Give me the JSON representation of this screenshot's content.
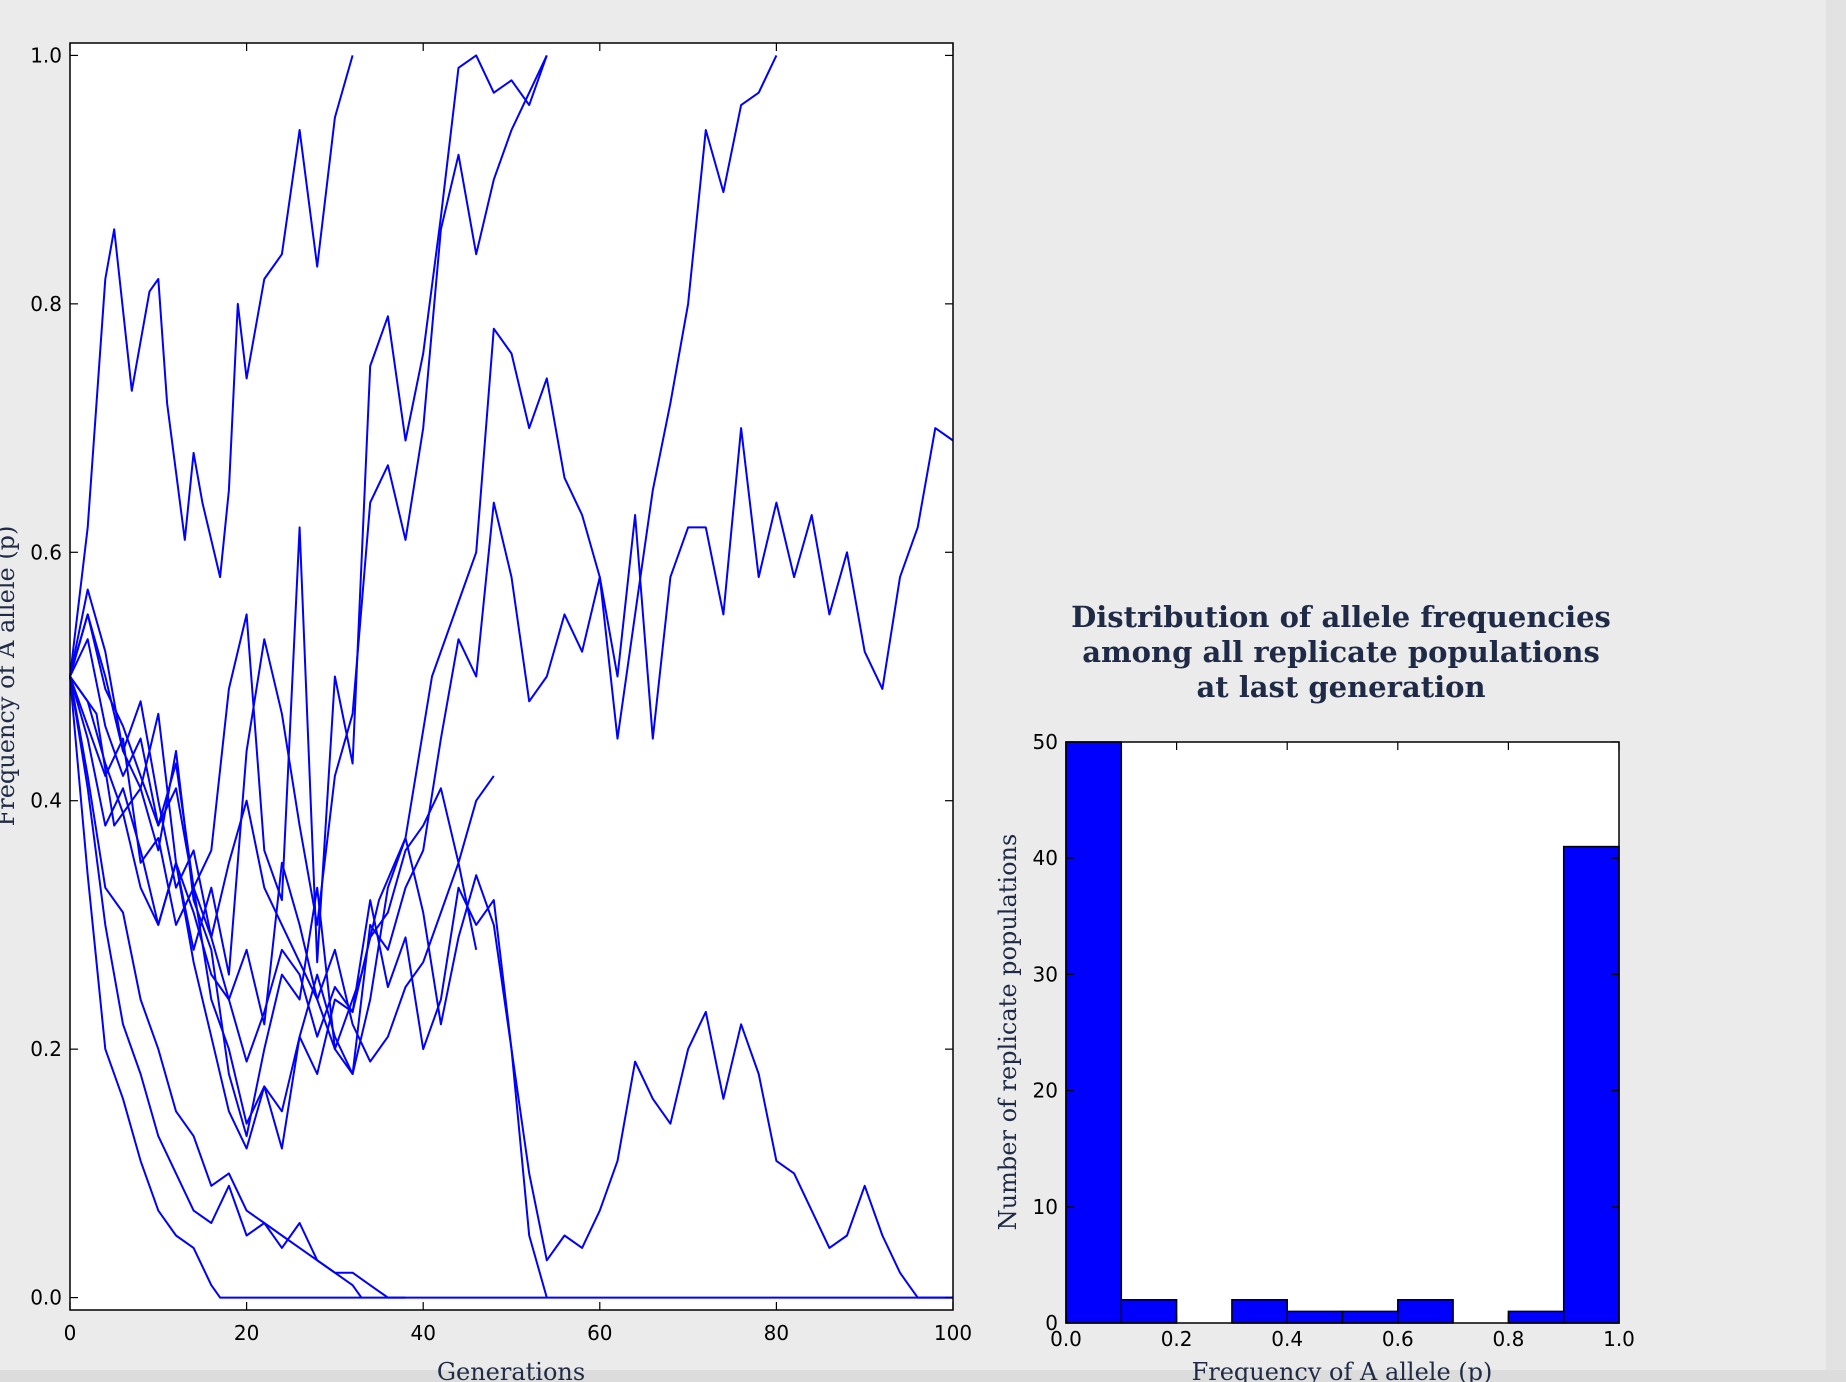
{
  "chart_data": [
    {
      "type": "line",
      "title": "",
      "xlabel": "Generations",
      "ylabel": "Frequency of A allele (p)",
      "xlim": [
        0,
        100
      ],
      "ylim": [
        0,
        1
      ],
      "x_ticks": [
        "0",
        "20",
        "40",
        "60",
        "80",
        "100"
      ],
      "y_ticks": [
        "0.0",
        "0.2",
        "0.4",
        "0.6",
        "0.8",
        "1.0"
      ],
      "line_color": "#0000ff",
      "grid": false,
      "series": [
        {
          "x": [
            0,
            2,
            4,
            5,
            7,
            9,
            10,
            11,
            13,
            14,
            15,
            17,
            18,
            19,
            20,
            22,
            24,
            26,
            28,
            30,
            32
          ],
          "y": [
            0.5,
            0.62,
            0.82,
            0.86,
            0.73,
            0.81,
            0.82,
            0.72,
            0.61,
            0.68,
            0.64,
            0.58,
            0.65,
            0.8,
            0.74,
            0.82,
            0.84,
            0.94,
            0.83,
            0.95,
            1.0
          ]
        },
        {
          "x": [
            0,
            2,
            4,
            6,
            8,
            10,
            12,
            14,
            16,
            18,
            20,
            22,
            24,
            26,
            28,
            30,
            32,
            34,
            36,
            38,
            40,
            42,
            44,
            46,
            48,
            50,
            52,
            54
          ],
          "y": [
            0.5,
            0.53,
            0.46,
            0.42,
            0.45,
            0.38,
            0.43,
            0.33,
            0.36,
            0.49,
            0.55,
            0.36,
            0.32,
            0.62,
            0.27,
            0.5,
            0.43,
            0.75,
            0.79,
            0.69,
            0.76,
            0.87,
            0.99,
            1.0,
            0.97,
            0.98,
            0.96,
            1.0
          ]
        },
        {
          "x": [
            0,
            2,
            4,
            6,
            8,
            10,
            12,
            14,
            16,
            18,
            20,
            22,
            24,
            26,
            28,
            30,
            32,
            34,
            36,
            38,
            40,
            42,
            44,
            46,
            48,
            50,
            52,
            54
          ],
          "y": [
            0.5,
            0.57,
            0.52,
            0.44,
            0.41,
            0.47,
            0.35,
            0.28,
            0.33,
            0.26,
            0.44,
            0.53,
            0.47,
            0.38,
            0.3,
            0.42,
            0.47,
            0.64,
            0.67,
            0.61,
            0.7,
            0.86,
            0.92,
            0.84,
            0.9,
            0.94,
            0.97,
            1.0
          ]
        },
        {
          "x": [
            0,
            3,
            5,
            8,
            10,
            12,
            14,
            16,
            18,
            20,
            22,
            24,
            26,
            28,
            30,
            33,
            35,
            38,
            41,
            44,
            46,
            48,
            50,
            52,
            54,
            56,
            58,
            60,
            62,
            64,
            66,
            68,
            70,
            72,
            74,
            76,
            78,
            80
          ],
          "y": [
            0.5,
            0.47,
            0.38,
            0.41,
            0.36,
            0.44,
            0.32,
            0.28,
            0.18,
            0.13,
            0.2,
            0.26,
            0.24,
            0.33,
            0.2,
            0.26,
            0.32,
            0.37,
            0.5,
            0.56,
            0.6,
            0.78,
            0.76,
            0.7,
            0.74,
            0.66,
            0.63,
            0.58,
            0.45,
            0.55,
            0.65,
            0.72,
            0.8,
            0.94,
            0.89,
            0.96,
            0.97,
            1.0
          ]
        },
        {
          "x": [
            0,
            2,
            4,
            6,
            8,
            10,
            12,
            14,
            16,
            18,
            20,
            22,
            24,
            26,
            28,
            30,
            32,
            34,
            36,
            38,
            40,
            42,
            44,
            46,
            48,
            50,
            52,
            54,
            56,
            58,
            60,
            62,
            64,
            66,
            68,
            70,
            72,
            74,
            76,
            78,
            80,
            82,
            84,
            86,
            88,
            90,
            92,
            94,
            96,
            98,
            100
          ],
          "y": [
            0.5,
            0.55,
            0.5,
            0.44,
            0.48,
            0.4,
            0.33,
            0.36,
            0.29,
            0.24,
            0.28,
            0.22,
            0.35,
            0.3,
            0.24,
            0.2,
            0.18,
            0.3,
            0.28,
            0.33,
            0.36,
            0.45,
            0.53,
            0.5,
            0.64,
            0.58,
            0.48,
            0.5,
            0.55,
            0.52,
            0.58,
            0.5,
            0.63,
            0.45,
            0.58,
            0.62,
            0.62,
            0.55,
            0.7,
            0.58,
            0.64,
            0.58,
            0.63,
            0.55,
            0.6,
            0.52,
            0.49,
            0.58,
            0.62,
            0.7,
            0.69
          ]
        },
        {
          "x": [
            0,
            2,
            4,
            6,
            8,
            10,
            12,
            14,
            16,
            18,
            20,
            22,
            24,
            26,
            28,
            30,
            32,
            34,
            36,
            38,
            40,
            42,
            44,
            46,
            48,
            50,
            52,
            54,
            56,
            58,
            60,
            62,
            64,
            66,
            68,
            70,
            72,
            74,
            76,
            78,
            80,
            82,
            84,
            86,
            88,
            90,
            92,
            94,
            95,
            96,
            100
          ],
          "y": [
            0.5,
            0.46,
            0.42,
            0.45,
            0.35,
            0.37,
            0.3,
            0.33,
            0.24,
            0.2,
            0.14,
            0.17,
            0.12,
            0.21,
            0.18,
            0.24,
            0.23,
            0.32,
            0.25,
            0.29,
            0.2,
            0.24,
            0.33,
            0.3,
            0.32,
            0.2,
            0.1,
            0.03,
            0.05,
            0.04,
            0.07,
            0.11,
            0.19,
            0.16,
            0.14,
            0.2,
            0.23,
            0.16,
            0.22,
            0.18,
            0.11,
            0.1,
            0.07,
            0.04,
            0.05,
            0.09,
            0.05,
            0.02,
            0.01,
            0.0,
            0.0
          ]
        },
        {
          "x": [
            0,
            2,
            4,
            6,
            8,
            10,
            12,
            14,
            16,
            18,
            20,
            22,
            24,
            26,
            28,
            30,
            32,
            34,
            36,
            38,
            40,
            42,
            44,
            46,
            48,
            50,
            52,
            54
          ],
          "y": [
            0.5,
            0.45,
            0.38,
            0.41,
            0.36,
            0.3,
            0.35,
            0.27,
            0.21,
            0.15,
            0.12,
            0.17,
            0.15,
            0.21,
            0.26,
            0.21,
            0.18,
            0.24,
            0.33,
            0.37,
            0.31,
            0.22,
            0.29,
            0.34,
            0.3,
            0.2,
            0.05,
            0.0
          ]
        },
        {
          "x": [
            0,
            2,
            4,
            6,
            8,
            10,
            12,
            14,
            16,
            18,
            20,
            22,
            24,
            26,
            28,
            30,
            32,
            34,
            36,
            38
          ],
          "y": [
            0.5,
            0.42,
            0.33,
            0.31,
            0.24,
            0.2,
            0.15,
            0.13,
            0.09,
            0.1,
            0.07,
            0.06,
            0.05,
            0.04,
            0.03,
            0.02,
            0.02,
            0.01,
            0.0,
            0.0
          ]
        },
        {
          "x": [
            0,
            2,
            4,
            6,
            8,
            10,
            12,
            14,
            16,
            17,
            100
          ],
          "y": [
            0.5,
            0.34,
            0.2,
            0.16,
            0.11,
            0.07,
            0.05,
            0.04,
            0.01,
            0.0,
            0.0
          ]
        },
        {
          "x": [
            0,
            2,
            4,
            6,
            8,
            10,
            12,
            14,
            16,
            18,
            20,
            22,
            24,
            26,
            28,
            30,
            32,
            33
          ],
          "y": [
            0.5,
            0.41,
            0.3,
            0.22,
            0.18,
            0.13,
            0.1,
            0.07,
            0.06,
            0.09,
            0.05,
            0.06,
            0.04,
            0.06,
            0.03,
            0.02,
            0.01,
            0.0
          ]
        },
        {
          "x": [
            0,
            2,
            4,
            6,
            8,
            10,
            12,
            14,
            16,
            18,
            20,
            22,
            24,
            26,
            28,
            30,
            32,
            34,
            36,
            38,
            40,
            42,
            44,
            46,
            48
          ],
          "y": [
            0.5,
            0.48,
            0.43,
            0.39,
            0.33,
            0.3,
            0.35,
            0.31,
            0.26,
            0.24,
            0.19,
            0.23,
            0.28,
            0.26,
            0.21,
            0.25,
            0.23,
            0.29,
            0.31,
            0.36,
            0.38,
            0.41,
            0.35,
            0.4,
            0.42
          ]
        },
        {
          "x": [
            0,
            2,
            4,
            6,
            8,
            10,
            12,
            14,
            16,
            18,
            20,
            22,
            24,
            26,
            28,
            30,
            32,
            34,
            36,
            38,
            40,
            42,
            44,
            46
          ],
          "y": [
            0.5,
            0.55,
            0.49,
            0.46,
            0.42,
            0.38,
            0.41,
            0.33,
            0.29,
            0.35,
            0.4,
            0.33,
            0.3,
            0.27,
            0.24,
            0.28,
            0.22,
            0.19,
            0.21,
            0.25,
            0.27,
            0.31,
            0.35,
            0.28
          ]
        }
      ]
    },
    {
      "type": "bar",
      "title": "Distribution of allele frequencies among all replicate populations at last generation",
      "title_lines": [
        "Distribution of allele frequencies",
        "among all replicate populations",
        "at last generation"
      ],
      "xlabel": "Frequency of A allele (p)",
      "ylabel": "Number of replicate populations",
      "xlim": [
        0,
        1
      ],
      "ylim": [
        0,
        50
      ],
      "x_ticks": [
        "0.0",
        "0.2",
        "0.4",
        "0.6",
        "0.8",
        "1.0"
      ],
      "y_ticks": [
        "0",
        "10",
        "20",
        "30",
        "40",
        "50"
      ],
      "bar_color": "#0000ff",
      "bins": [
        {
          "start": 0.0,
          "end": 0.1,
          "value": 50
        },
        {
          "start": 0.1,
          "end": 0.2,
          "value": 2
        },
        {
          "start": 0.2,
          "end": 0.3,
          "value": 0
        },
        {
          "start": 0.3,
          "end": 0.4,
          "value": 2
        },
        {
          "start": 0.4,
          "end": 0.5,
          "value": 1
        },
        {
          "start": 0.5,
          "end": 0.6,
          "value": 1
        },
        {
          "start": 0.6,
          "end": 0.7,
          "value": 2
        },
        {
          "start": 0.7,
          "end": 0.8,
          "value": 0
        },
        {
          "start": 0.8,
          "end": 0.9,
          "value": 1
        },
        {
          "start": 0.9,
          "end": 1.0,
          "value": 41
        }
      ]
    }
  ]
}
